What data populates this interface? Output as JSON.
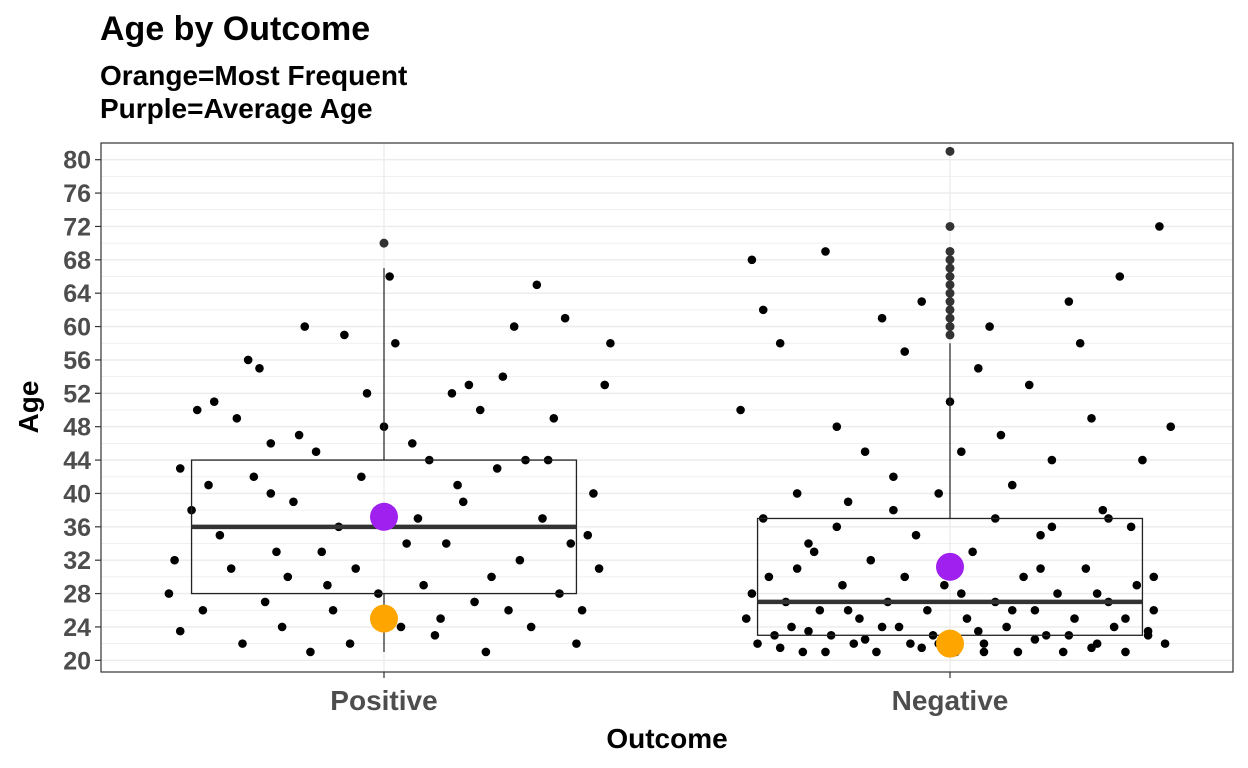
{
  "chart_data": {
    "type": "box",
    "title": "Age by Outcome",
    "subtitle_lines": [
      "Orange=Most Frequent",
      "Purple=Average Age"
    ],
    "xlabel": "Outcome",
    "ylabel": "Age",
    "categories": [
      "Positive",
      "Negative"
    ],
    "ylim": [
      18.6,
      82
    ],
    "yticks": [
      20,
      24,
      28,
      32,
      36,
      40,
      44,
      48,
      52,
      56,
      60,
      64,
      68,
      72,
      76,
      80
    ],
    "boxes": [
      {
        "category": "Positive",
        "min": 21,
        "q1": 28,
        "median": 36,
        "q3": 44,
        "max": 67,
        "outliers": [
          70
        ]
      },
      {
        "category": "Negative",
        "min": 21,
        "q1": 23,
        "median": 27,
        "q3": 37,
        "max": 58,
        "outliers": [
          59,
          60,
          61,
          62,
          63,
          64,
          65,
          66,
          67,
          68,
          69,
          72,
          81
        ]
      }
    ],
    "most_frequent": [
      {
        "category": "Positive",
        "value": 25,
        "color": "#FFA500"
      },
      {
        "category": "Negative",
        "value": 22,
        "color": "#FFA500"
      }
    ],
    "average": [
      {
        "category": "Positive",
        "value": 37.2,
        "color": "#A020F0"
      },
      {
        "category": "Negative",
        "value": 31.2,
        "color": "#A020F0"
      }
    ],
    "jitter_points": {
      "Positive": [
        [
          -0.38,
          28
        ],
        [
          -0.36,
          43
        ],
        [
          -0.33,
          50
        ],
        [
          -0.31,
          41
        ],
        [
          -0.26,
          49
        ],
        [
          -0.24,
          56
        ],
        [
          -0.22,
          55
        ],
        [
          -0.2,
          46
        ],
        [
          -0.19,
          33
        ],
        [
          -0.17,
          30
        ],
        [
          -0.14,
          60
        ],
        [
          -0.12,
          45
        ],
        [
          -0.1,
          29
        ],
        [
          -0.07,
          59
        ],
        [
          -0.05,
          31
        ],
        [
          -0.03,
          52
        ],
        [
          0.0,
          48
        ],
        [
          0.02,
          58
        ],
        [
          0.04,
          34
        ],
        [
          0.06,
          37
        ],
        [
          0.08,
          44
        ],
        [
          0.1,
          25
        ],
        [
          0.12,
          52
        ],
        [
          0.13,
          41
        ],
        [
          0.15,
          53
        ],
        [
          0.17,
          50
        ],
        [
          0.19,
          30
        ],
        [
          0.21,
          54
        ],
        [
          0.23,
          60
        ],
        [
          0.25,
          44
        ],
        [
          0.27,
          65
        ],
        [
          0.3,
          49
        ],
        [
          0.33,
          34
        ],
        [
          0.35,
          26
        ],
        [
          0.37,
          40
        ],
        [
          0.4,
          58
        ],
        [
          -0.36,
          23.5
        ],
        [
          -0.34,
          38
        ],
        [
          -0.32,
          26
        ],
        [
          -0.29,
          35
        ],
        [
          -0.27,
          31
        ],
        [
          -0.25,
          22
        ],
        [
          -0.23,
          42
        ],
        [
          -0.21,
          27
        ],
        [
          -0.18,
          24
        ],
        [
          -0.16,
          39
        ],
        [
          -0.13,
          21
        ],
        [
          -0.11,
          33
        ],
        [
          -0.09,
          26
        ],
        [
          -0.06,
          22
        ],
        [
          -0.04,
          42
        ],
        [
          -0.01,
          28
        ],
        [
          0.03,
          24
        ],
        [
          0.05,
          46
        ],
        [
          0.07,
          29
        ],
        [
          0.09,
          23
        ],
        [
          0.11,
          34
        ],
        [
          0.14,
          39
        ],
        [
          0.16,
          27
        ],
        [
          0.18,
          21
        ],
        [
          0.2,
          43
        ],
        [
          0.22,
          26
        ],
        [
          0.24,
          32
        ],
        [
          0.26,
          24
        ],
        [
          0.28,
          37
        ],
        [
          0.31,
          28
        ],
        [
          0.34,
          22
        ],
        [
          0.36,
          35
        ],
        [
          0.38,
          31
        ],
        [
          0.39,
          53
        ],
        [
          -0.3,
          51
        ],
        [
          -0.2,
          40
        ],
        [
          -0.08,
          36
        ],
        [
          0.01,
          66
        ],
        [
          -0.15,
          47
        ],
        [
          0.29,
          44
        ],
        [
          -0.37,
          32
        ],
        [
          0.32,
          61
        ]
      ],
      "Negative": [
        [
          -0.37,
          50
        ],
        [
          -0.35,
          68
        ],
        [
          -0.33,
          62
        ],
        [
          -0.3,
          58
        ],
        [
          -0.27,
          40
        ],
        [
          -0.25,
          34
        ],
        [
          -0.22,
          69
        ],
        [
          -0.2,
          48
        ],
        [
          -0.18,
          39
        ],
        [
          -0.15,
          45
        ],
        [
          -0.12,
          61
        ],
        [
          -0.1,
          42
        ],
        [
          -0.08,
          57
        ],
        [
          -0.05,
          63
        ],
        [
          -0.02,
          40
        ],
        [
          0.0,
          51
        ],
        [
          0.02,
          45
        ],
        [
          0.05,
          55
        ],
        [
          0.07,
          60
        ],
        [
          0.09,
          47
        ],
        [
          0.11,
          41
        ],
        [
          0.14,
          53
        ],
        [
          0.16,
          35
        ],
        [
          0.18,
          44
        ],
        [
          0.21,
          63
        ],
        [
          0.23,
          58
        ],
        [
          0.25,
          49
        ],
        [
          0.27,
          38
        ],
        [
          0.3,
          66
        ],
        [
          0.32,
          36
        ],
        [
          0.34,
          44
        ],
        [
          0.37,
          72
        ],
        [
          0.39,
          48
        ],
        [
          -0.36,
          25
        ],
        [
          -0.34,
          22
        ],
        [
          -0.32,
          30
        ],
        [
          -0.29,
          27
        ],
        [
          -0.28,
          24
        ],
        [
          -0.26,
          21
        ],
        [
          -0.24,
          33
        ],
        [
          -0.23,
          26
        ],
        [
          -0.21,
          23
        ],
        [
          -0.19,
          29
        ],
        [
          -0.17,
          22
        ],
        [
          -0.16,
          25
        ],
        [
          -0.14,
          32
        ],
        [
          -0.13,
          21
        ],
        [
          -0.11,
          27
        ],
        [
          -0.09,
          24
        ],
        [
          -0.07,
          22
        ],
        [
          -0.06,
          35
        ],
        [
          -0.04,
          26
        ],
        [
          -0.03,
          23
        ],
        [
          -0.01,
          29
        ],
        [
          0.01,
          21
        ],
        [
          0.03,
          25
        ],
        [
          0.04,
          33
        ],
        [
          0.06,
          22
        ],
        [
          0.08,
          27
        ],
        [
          0.1,
          24
        ],
        [
          0.12,
          21
        ],
        [
          0.13,
          30
        ],
        [
          0.15,
          26
        ],
        [
          0.17,
          23
        ],
        [
          0.19,
          28
        ],
        [
          0.2,
          21
        ],
        [
          0.22,
          25
        ],
        [
          0.24,
          31
        ],
        [
          0.26,
          22
        ],
        [
          0.28,
          27
        ],
        [
          0.29,
          24
        ],
        [
          0.31,
          21
        ],
        [
          0.33,
          29
        ],
        [
          0.35,
          23
        ],
        [
          0.36,
          26
        ],
        [
          0.38,
          22
        ],
        [
          -0.35,
          28
        ],
        [
          -0.31,
          23
        ],
        [
          -0.27,
          31
        ],
        [
          -0.22,
          21
        ],
        [
          -0.18,
          26
        ],
        [
          -0.12,
          24
        ],
        [
          -0.08,
          30
        ],
        [
          -0.02,
          22
        ],
        [
          0.02,
          28
        ],
        [
          0.06,
          21
        ],
        [
          0.11,
          26
        ],
        [
          0.16,
          31
        ],
        [
          0.21,
          23
        ],
        [
          0.26,
          28
        ],
        [
          0.31,
          25
        ],
        [
          0.36,
          30
        ],
        [
          -0.33,
          37
        ],
        [
          -0.2,
          36
        ],
        [
          -0.1,
          38
        ],
        [
          0.08,
          37
        ],
        [
          0.18,
          36
        ],
        [
          0.28,
          37
        ],
        [
          -0.3,
          21.5
        ],
        [
          -0.25,
          23.5
        ],
        [
          -0.15,
          22.5
        ],
        [
          -0.05,
          21.5
        ],
        [
          0.05,
          23.5
        ],
        [
          0.15,
          22.5
        ],
        [
          0.25,
          21.5
        ],
        [
          0.35,
          23.5
        ]
      ]
    }
  }
}
